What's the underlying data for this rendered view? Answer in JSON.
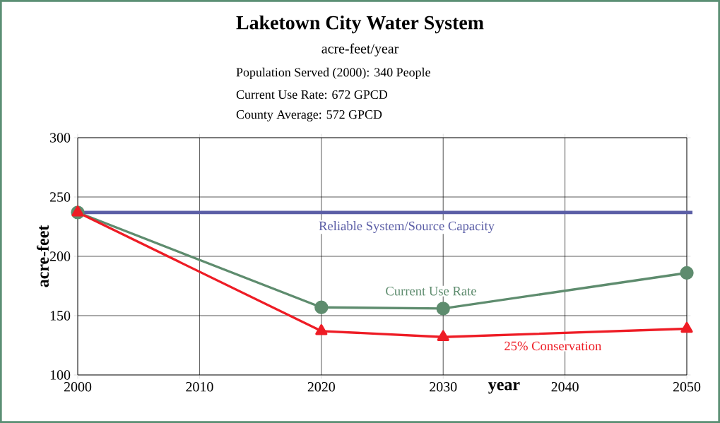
{
  "chart_data": {
    "type": "line",
    "title": "Laketown City Water System",
    "subtitle": "acre-feet/year",
    "annotations": [
      "Population Served (2000): 340 People",
      "Current Use Rate: 672 GPCD",
      "County Average: 572 GPCD"
    ],
    "xlabel": "year",
    "ylabel": "acre-feet",
    "x": [
      2000,
      2020,
      2030,
      2050
    ],
    "series": [
      {
        "name": "Current Use Rate",
        "color": "#5e8c6e",
        "values": [
          237,
          157,
          156,
          186
        ],
        "marker": "circle"
      },
      {
        "name": "25% Conservation",
        "color": "#ee1c25",
        "values": [
          237,
          137,
          132,
          139
        ],
        "marker": "triangle"
      }
    ],
    "ref_lines": [
      {
        "axis": "y",
        "value": 237,
        "label": "Reliable System/Source Capacity",
        "color": "#5b5ea6"
      }
    ],
    "xlim": [
      2000,
      2050
    ],
    "xticks": [
      2000,
      2010,
      2020,
      2030,
      2040,
      2050
    ],
    "ylim": [
      100,
      300
    ],
    "yticks": [
      100,
      150,
      200,
      250,
      300
    ],
    "grid": true
  }
}
